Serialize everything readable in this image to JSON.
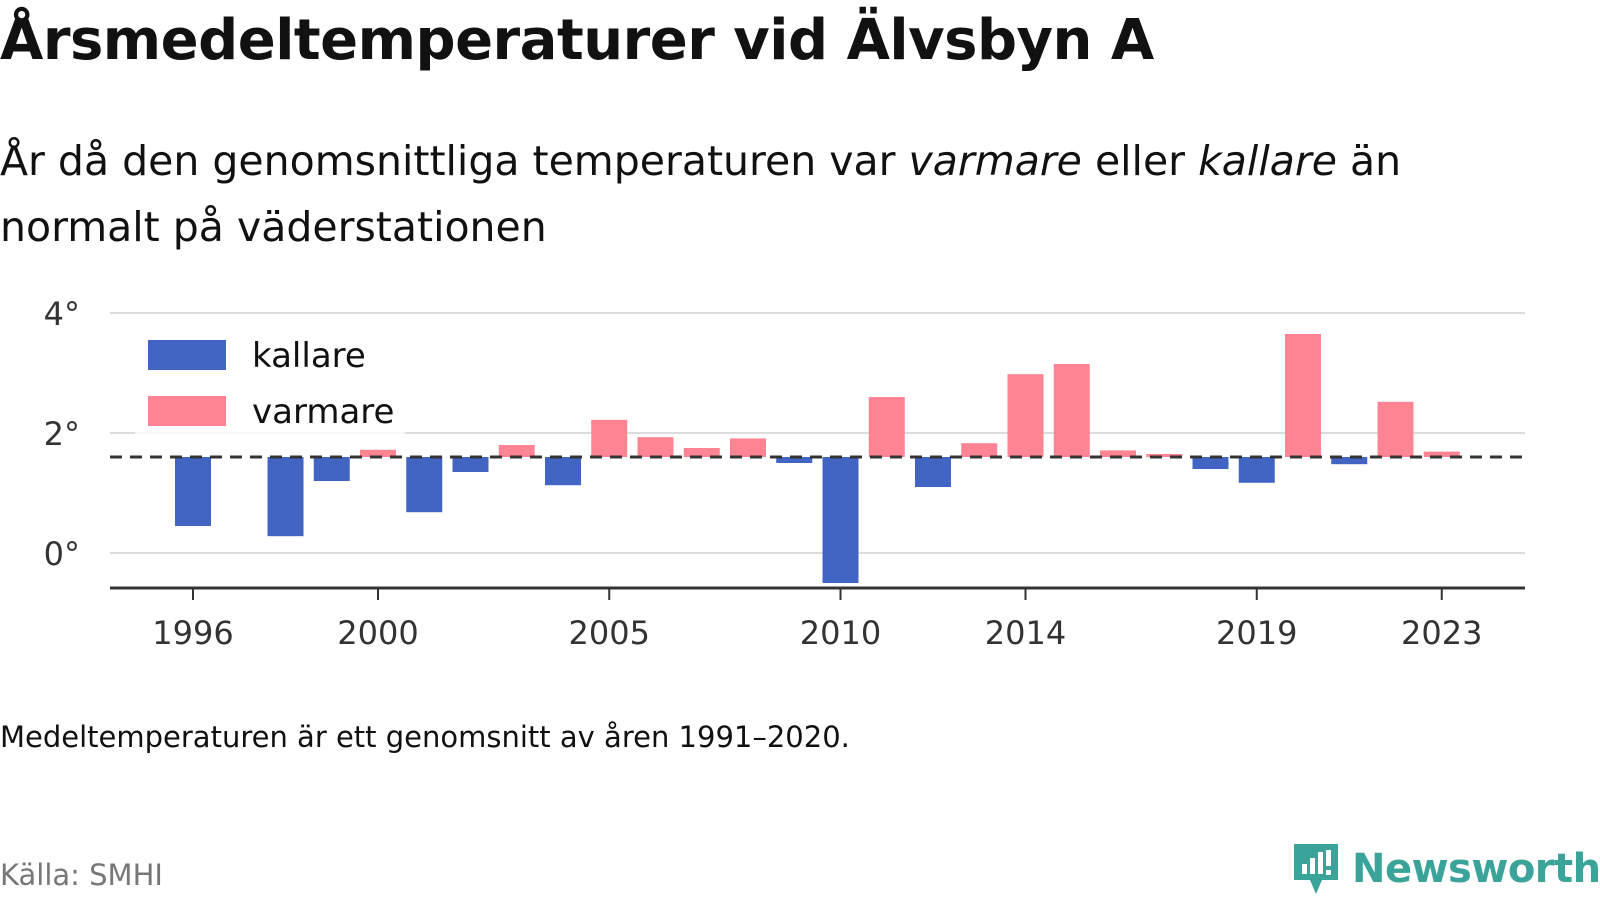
{
  "header": {
    "title": "Årsmedeltemperaturer vid Älvsbyn A",
    "subtitle_parts": [
      "År då den genomsnittliga temperaturen var ",
      "varmare",
      " eller ",
      "kallare",
      " än normalt på väderstationen"
    ]
  },
  "footer": {
    "note": "Medeltemperaturen är ett genomsnitt av åren 1991–2020.",
    "source": "Källa: SMHI",
    "brand": "Newsworthy"
  },
  "colors": {
    "warmer": "#ff8493",
    "colder": "#4264c2",
    "grid": "#dddddd",
    "axis": "#333333",
    "brand": "#3aa39a"
  },
  "chart_data": {
    "type": "bar",
    "title": "Årsmedeltemperaturer vid Älvsbyn A",
    "baseline": 1.6,
    "baseline_style": "dashed",
    "ylim": [
      -0.6,
      4.0
    ],
    "yticks": [
      0,
      2,
      4
    ],
    "ytick_labels": [
      "0°",
      "2°",
      "4°"
    ],
    "xticks": [
      1996,
      2000,
      2005,
      2010,
      2014,
      2019,
      2023
    ],
    "grid": true,
    "legend_position": "top-left",
    "series": [
      {
        "name": "kallare",
        "color": "#4264c2"
      },
      {
        "name": "varmare",
        "color": "#ff8493"
      }
    ],
    "x": [
      1996,
      1997,
      1998,
      1999,
      2000,
      2001,
      2002,
      2003,
      2004,
      2005,
      2006,
      2007,
      2008,
      2009,
      2010,
      2011,
      2012,
      2013,
      2014,
      2015,
      2016,
      2017,
      2018,
      2019,
      2020,
      2021,
      2022,
      2023
    ],
    "values": [
      0.45,
      null,
      0.28,
      1.2,
      1.72,
      0.68,
      1.35,
      1.8,
      1.13,
      2.22,
      1.93,
      1.75,
      1.91,
      1.5,
      -0.5,
      2.6,
      1.1,
      1.83,
      2.98,
      3.15,
      1.71,
      1.65,
      1.4,
      1.17,
      3.65,
      1.48,
      2.52,
      1.69
    ]
  }
}
